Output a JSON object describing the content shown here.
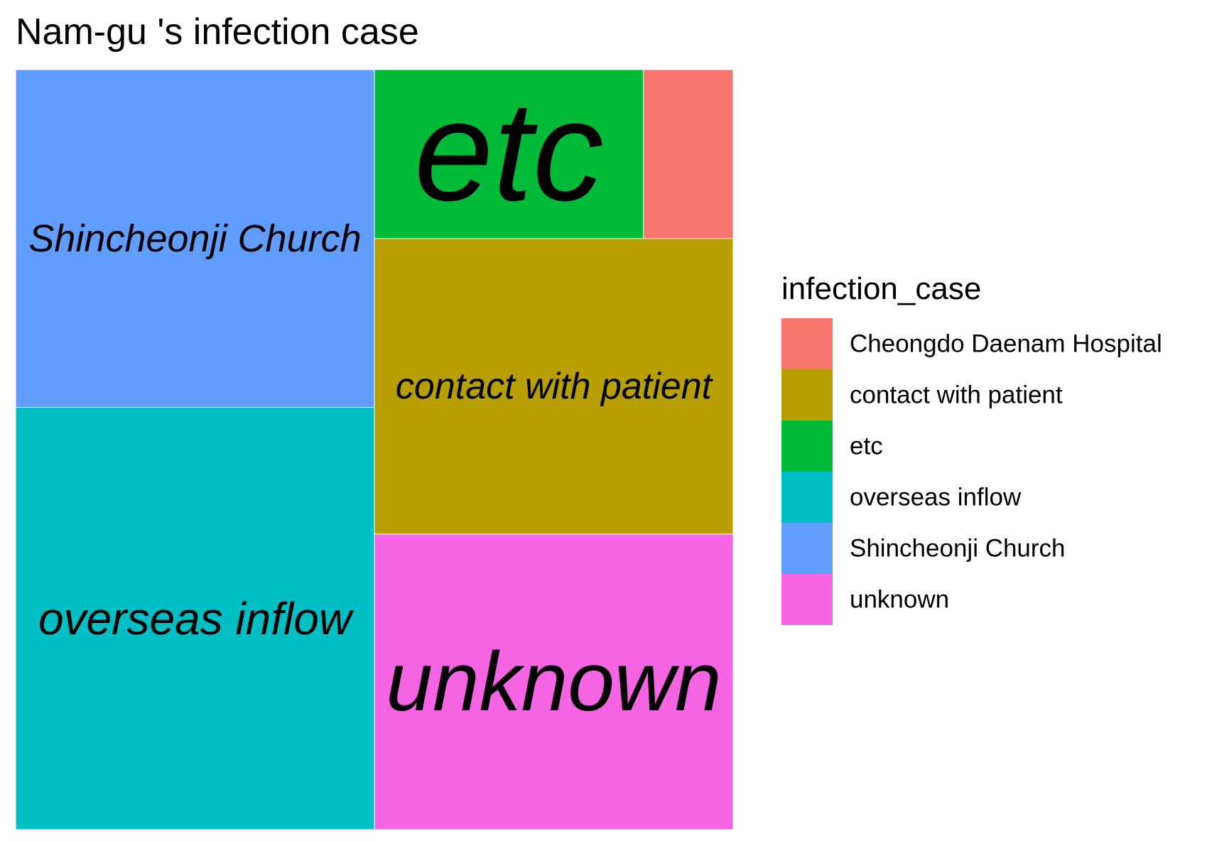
{
  "chart_data": {
    "type": "treemap",
    "title": "Nam-gu 's infection case",
    "legend": {
      "title": "infection_case",
      "placement": "right",
      "entries": [
        {
          "label": "Cheongdo Daenam Hospital",
          "color": "#F8766D"
        },
        {
          "label": "contact with patient",
          "color": "#B79F00"
        },
        {
          "label": "etc",
          "color": "#00BA38"
        },
        {
          "label": "overseas inflow",
          "color": "#00BFC4"
        },
        {
          "label": "Shincheonji Church",
          "color": "#619CFF"
        },
        {
          "label": "unknown",
          "color": "#F564E3"
        }
      ]
    },
    "tiles": [
      {
        "name": "Shincheonji Church",
        "value": 4,
        "label": "Shincheonji Church",
        "color": "#619CFF"
      },
      {
        "name": "overseas inflow",
        "value": 5,
        "label": "overseas inflow",
        "color": "#00BFC4"
      },
      {
        "name": "etc",
        "value": 1.5,
        "label": "etc",
        "color": "#00BA38"
      },
      {
        "name": "Cheongdo Daenam Hospital",
        "value": 0.5,
        "label": "",
        "color": "#F8766D"
      },
      {
        "name": "contact with patient",
        "value": 3.5,
        "label": "contact with patient",
        "color": "#B79F00"
      },
      {
        "name": "unknown",
        "value": 3.5,
        "label": "unknown",
        "color": "#F564E3"
      }
    ]
  }
}
